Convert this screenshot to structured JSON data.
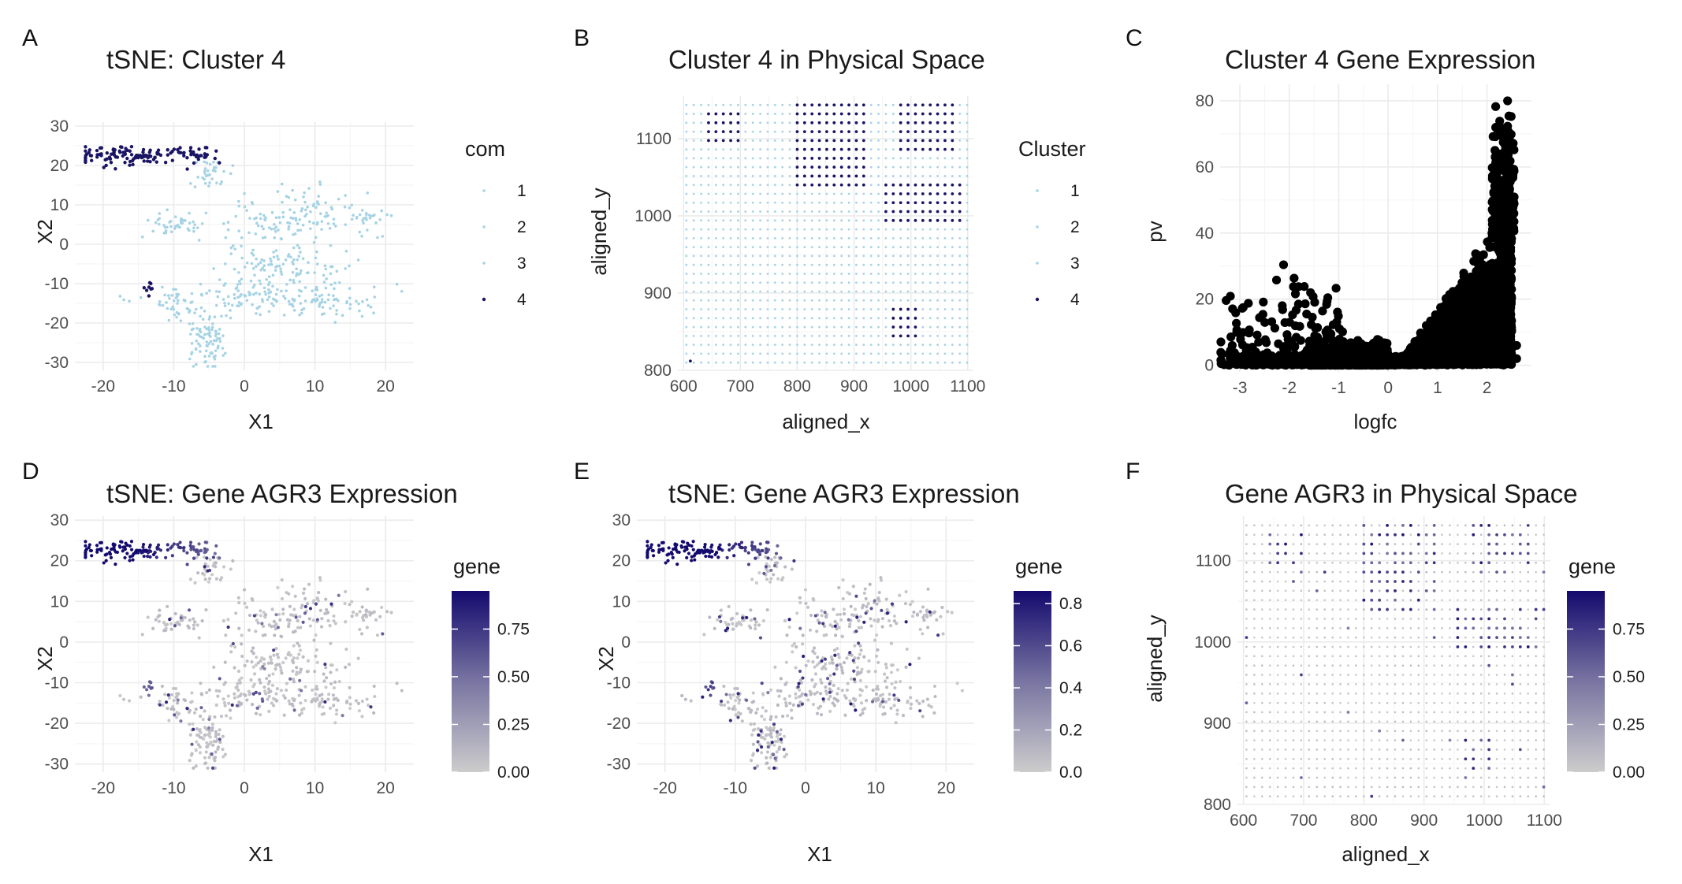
{
  "figure": {
    "panel_letters": [
      "A",
      "B",
      "C",
      "D",
      "E",
      "F"
    ]
  },
  "colors": {
    "cluster_light": "#a6d3e4",
    "cluster_dark": "#1a1464",
    "gene_low": "#cccccc",
    "gene_high": "#140a6e",
    "volcano": "#000000",
    "grid": "#ebebeb"
  },
  "chart_data": [
    {
      "panel": "A",
      "type": "scatter",
      "title": "tSNE: Cluster 4",
      "xlabel": "X1",
      "ylabel": "X2",
      "xlim": [
        -24,
        24
      ],
      "ylim": [
        -32,
        31
      ],
      "xticks": [
        -20,
        -10,
        0,
        10,
        20
      ],
      "yticks": [
        -30,
        -20,
        -10,
        0,
        10,
        20,
        30
      ],
      "legend": {
        "title": "com",
        "entries": [
          "1",
          "2",
          "3",
          "4"
        ],
        "colors": [
          "#a6d3e4",
          "#a6d3e4",
          "#a6d3e4",
          "#1a1464"
        ],
        "placement": "right"
      },
      "highlight_series": "4",
      "clusters": [
        {
          "com": "4",
          "cx": -16,
          "cy": 22.5,
          "sx": 4,
          "sy": 1.2,
          "n": 110
        },
        {
          "com": "4",
          "cx": -7,
          "cy": 22.5,
          "sx": 1.5,
          "sy": 1.2,
          "n": 25
        },
        {
          "com": "4",
          "cx": -13.5,
          "cy": -11,
          "sx": 0.4,
          "sy": 0.8,
          "n": 8
        },
        {
          "com": "3",
          "cx": -5,
          "cy": 18,
          "sx": 1.3,
          "sy": 2,
          "n": 35
        },
        {
          "com": "1",
          "cx": -10,
          "cy": 5,
          "sx": 2.5,
          "sy": 1.8,
          "n": 45
        },
        {
          "com": "1",
          "cx": 8,
          "cy": 7,
          "sx": 5,
          "sy": 3.5,
          "n": 130
        },
        {
          "com": "1",
          "cx": 18.5,
          "cy": 7,
          "sx": 1.8,
          "sy": 0.9,
          "n": 18
        },
        {
          "com": "2",
          "cx": 6,
          "cy": -6,
          "sx": 5,
          "sy": 3,
          "n": 110
        },
        {
          "com": "2",
          "cx": 2,
          "cy": -14,
          "sx": 8,
          "sy": 2.2,
          "n": 130
        },
        {
          "com": "2",
          "cx": 13,
          "cy": -15,
          "sx": 2,
          "sy": 2.5,
          "n": 30
        },
        {
          "com": "3",
          "cx": -10,
          "cy": -15,
          "sx": 1.5,
          "sy": 2,
          "n": 30
        },
        {
          "com": "3",
          "cx": -5,
          "cy": -24,
          "sx": 1.5,
          "sy": 4,
          "n": 90
        }
      ]
    },
    {
      "panel": "B",
      "type": "scatter",
      "title": "Cluster 4 in Physical Space",
      "xlabel": "aligned_x",
      "ylabel": "aligned_y",
      "xlim": [
        590,
        1110
      ],
      "ylim": [
        800,
        1155
      ],
      "xticks": [
        600,
        700,
        800,
        900,
        1000,
        1100
      ],
      "yticks": [
        800,
        900,
        1000,
        1100
      ],
      "legend": {
        "title": "Cluster",
        "entries": [
          "1",
          "2",
          "3",
          "4"
        ],
        "colors": [
          "#a6d3e4",
          "#a6d3e4",
          "#a6d3e4",
          "#1a1464"
        ],
        "placement": "right"
      },
      "grid_spots": {
        "x0": 605,
        "x1": 1100,
        "dx": 13,
        "y0": 810,
        "y1": 1150,
        "dy": 11.5
      },
      "highlight_regions": [
        {
          "cluster": "4",
          "x": [
            640,
            700
          ],
          "y": [
            1090,
            1140
          ]
        },
        {
          "cluster": "4",
          "x": [
            800,
            920
          ],
          "y": [
            1040,
            1150
          ]
        },
        {
          "cluster": "4",
          "x": [
            950,
            1090
          ],
          "y": [
            985,
            1040
          ]
        },
        {
          "cluster": "4",
          "x": [
            965,
            1010
          ],
          "y": [
            835,
            885
          ]
        },
        {
          "cluster": "4",
          "x": [
            980,
            1080
          ],
          "y": [
            1085,
            1150
          ]
        }
      ]
    },
    {
      "panel": "C",
      "type": "scatter",
      "title": "Cluster 4 Gene Expression",
      "xlabel": "logfc",
      "ylabel": "pv",
      "xlim": [
        -3.4,
        2.9
      ],
      "ylim": [
        -2,
        85
      ],
      "xticks": [
        -3,
        -2,
        -1,
        0,
        1,
        2
      ],
      "yticks": [
        0,
        20,
        40,
        60,
        80
      ],
      "color": "#000000",
      "shape": {
        "right_logfc": [
          0,
          2.5
        ],
        "peak_pv": 83,
        "left_logfc": [
          -3.4,
          0
        ],
        "left_max_pv": 31
      }
    },
    {
      "panel": "D",
      "type": "scatter",
      "title": "tSNE: Gene AGR3 Expression",
      "xlabel": "X1",
      "ylabel": "X2",
      "xlim": [
        -24,
        24
      ],
      "ylim": [
        -32,
        31
      ],
      "xticks": [
        -20,
        -10,
        0,
        10,
        20
      ],
      "yticks": [
        -30,
        -20,
        -10,
        0,
        10,
        20,
        30
      ],
      "legend": {
        "title": "gene",
        "type": "gradient",
        "low": "#cccccc",
        "high": "#140a6e",
        "min": 0,
        "max": 0.95,
        "ticks": [
          "0.00",
          "0.25",
          "0.50",
          "0.75"
        ],
        "tick_values": [
          0,
          0.25,
          0.5,
          0.75
        ],
        "placement": "right"
      },
      "seed": 11
    },
    {
      "panel": "E",
      "type": "scatter",
      "title": "tSNE: Gene AGR3 Expression",
      "xlabel": "X1",
      "ylabel": "X2",
      "xlim": [
        -24,
        24
      ],
      "ylim": [
        -32,
        31
      ],
      "xticks": [
        -20,
        -10,
        0,
        10,
        20
      ],
      "yticks": [
        -30,
        -20,
        -10,
        0,
        10,
        20,
        30
      ],
      "legend": {
        "title": "gene",
        "type": "gradient",
        "low": "#cccccc",
        "high": "#140a6e",
        "min": 0,
        "max": 0.86,
        "ticks": [
          "0.0",
          "0.2",
          "0.4",
          "0.6",
          "0.8"
        ],
        "tick_values": [
          0,
          0.2,
          0.4,
          0.6,
          0.8
        ],
        "placement": "right"
      },
      "seed": 23
    },
    {
      "panel": "F",
      "type": "scatter",
      "title": "Gene AGR3 in Physical Space",
      "xlabel": "aligned_x",
      "ylabel": "aligned_y",
      "xlim": [
        590,
        1110
      ],
      "ylim": [
        800,
        1155
      ],
      "xticks": [
        600,
        700,
        800,
        900,
        1000,
        1100
      ],
      "yticks": [
        800,
        900,
        1000,
        1100
      ],
      "legend": {
        "title": "gene",
        "type": "gradient",
        "low": "#cccccc",
        "high": "#140a6e",
        "min": 0,
        "max": 0.95,
        "ticks": [
          "0.00",
          "0.25",
          "0.50",
          "0.75"
        ],
        "tick_values": [
          0,
          0.25,
          0.5,
          0.75
        ],
        "placement": "right"
      },
      "grid_spots": {
        "x0": 605,
        "x1": 1100,
        "dx": 13,
        "y0": 810,
        "y1": 1150,
        "dy": 11.5
      },
      "expression_regions": [
        {
          "x": [
            640,
            700
          ],
          "y": [
            1090,
            1140
          ]
        },
        {
          "x": [
            800,
            920
          ],
          "y": [
            1040,
            1150
          ]
        },
        {
          "x": [
            950,
            1090
          ],
          "y": [
            985,
            1040
          ]
        },
        {
          "x": [
            965,
            1010
          ],
          "y": [
            835,
            885
          ]
        },
        {
          "x": [
            980,
            1080
          ],
          "y": [
            1085,
            1150
          ]
        }
      ]
    }
  ]
}
